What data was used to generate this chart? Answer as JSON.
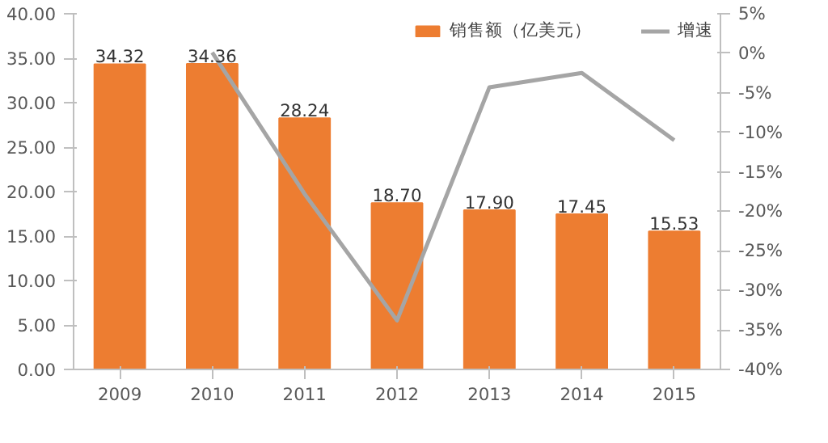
{
  "chart_data": {
    "type": "bar",
    "categories": [
      "2009",
      "2010",
      "2011",
      "2012",
      "2013",
      "2014",
      "2015"
    ],
    "series": [
      {
        "name": "销售额（亿美元）",
        "color": "#ed7d31",
        "values": [
          34.32,
          34.36,
          28.24,
          18.7,
          17.9,
          17.45,
          15.53
        ],
        "value_labels": [
          "34.32",
          "34.36",
          "28.24",
          "18.70",
          "17.90",
          "17.45",
          "15.53"
        ]
      },
      {
        "name": "增速",
        "type": "line",
        "axis": "y2",
        "color": "#a5a5a5",
        "values": [
          null,
          0.1,
          -17.8,
          -33.8,
          -4.3,
          -2.5,
          -11.0
        ]
      }
    ],
    "ylim": [
      0,
      40
    ],
    "yticks": [
      {
        "value": 0,
        "label": "0.00"
      },
      {
        "value": 5,
        "label": "5.00"
      },
      {
        "value": 10,
        "label": "10.00"
      },
      {
        "value": 15,
        "label": "15.00"
      },
      {
        "value": 20,
        "label": "20.00"
      },
      {
        "value": 25,
        "label": "25.00"
      },
      {
        "value": 30,
        "label": "30.00"
      },
      {
        "value": 35,
        "label": "35.00"
      },
      {
        "value": 40,
        "label": "40.00"
      }
    ],
    "y2lim": [
      -40,
      5
    ],
    "y2ticks": [
      {
        "value": -40,
        "label": "-40%"
      },
      {
        "value": -35,
        "label": "-35%"
      },
      {
        "value": -30,
        "label": "-30%"
      },
      {
        "value": -25,
        "label": "-25%"
      },
      {
        "value": -20,
        "label": "-20%"
      },
      {
        "value": -15,
        "label": "-15%"
      },
      {
        "value": -10,
        "label": "-10%"
      },
      {
        "value": -5,
        "label": "-5%"
      },
      {
        "value": 0,
        "label": "0%"
      },
      {
        "value": 5,
        "label": "5%"
      }
    ],
    "grid": false,
    "legend": "top right",
    "marker": "none",
    "line_style": "solid"
  }
}
